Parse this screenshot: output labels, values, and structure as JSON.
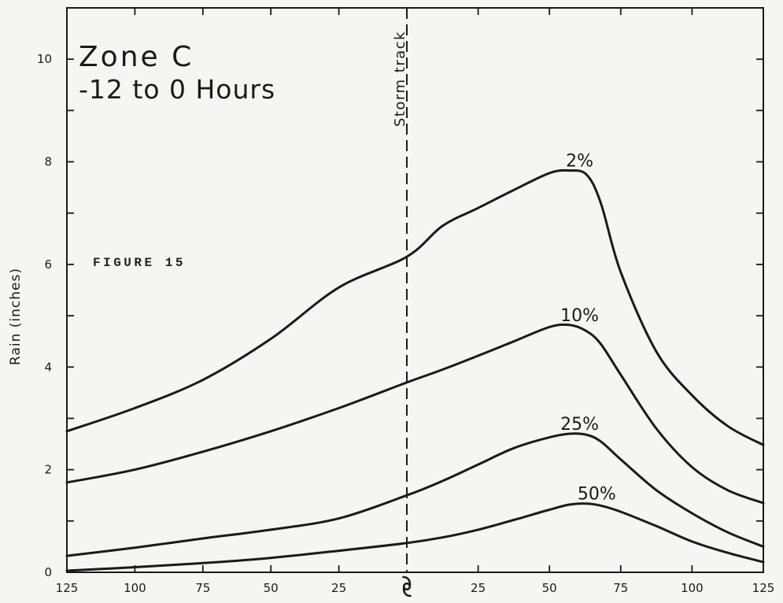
{
  "chart_data": {
    "type": "line",
    "title": "Zone C",
    "subtitle": "-12 to 0 Hours",
    "figure_label": "FIGURE 15",
    "ylabel": "Rain (inches)",
    "xlim": [
      -125,
      125
    ],
    "ylim": [
      0,
      11
    ],
    "x_ticks": [
      -125,
      -100,
      -75,
      -50,
      -25,
      0,
      25,
      50,
      75,
      100,
      125
    ],
    "x_tick_labels": [
      "125",
      "100",
      "75",
      "50",
      "25",
      "",
      "25",
      "50",
      "75",
      "100",
      "125"
    ],
    "y_ticks": [
      0,
      2,
      4,
      6,
      8,
      10
    ],
    "y_tick_labels": [
      "0",
      "2",
      "4",
      "6",
      "8",
      "10"
    ],
    "y_minor_ticks": [
      1,
      3,
      5,
      7,
      9
    ],
    "grid": false,
    "legend": false,
    "reference_line": {
      "x": 0,
      "label": "Storm track",
      "dashed": true
    },
    "center_tick_icon": "storm-symbol-icon",
    "line_color": "#1a1a1a",
    "x": [
      -125,
      -100,
      -75,
      -50,
      -25,
      0,
      12.5,
      25,
      37.5,
      50,
      57,
      63,
      68,
      75,
      87.5,
      100,
      112.5,
      125
    ],
    "series": [
      {
        "name": "2%",
        "values": [
          2.75,
          3.2,
          3.75,
          4.55,
          5.55,
          6.15,
          6.75,
          7.1,
          7.45,
          7.78,
          7.83,
          7.75,
          7.2,
          5.85,
          4.3,
          3.45,
          2.85,
          2.48
        ]
      },
      {
        "name": "10%",
        "values": [
          1.75,
          2.0,
          2.35,
          2.75,
          3.2,
          3.7,
          3.95,
          4.22,
          4.5,
          4.78,
          4.82,
          4.7,
          4.45,
          3.85,
          2.8,
          2.05,
          1.6,
          1.35
        ]
      },
      {
        "name": "25%",
        "values": [
          0.32,
          0.48,
          0.66,
          0.83,
          1.05,
          1.5,
          1.78,
          2.1,
          2.42,
          2.63,
          2.7,
          2.68,
          2.55,
          2.2,
          1.6,
          1.15,
          0.78,
          0.5
        ]
      },
      {
        "name": "50%",
        "values": [
          0.03,
          0.1,
          0.18,
          0.28,
          0.42,
          0.57,
          0.68,
          0.83,
          1.02,
          1.22,
          1.32,
          1.34,
          1.3,
          1.18,
          0.9,
          0.6,
          0.38,
          0.2
        ]
      }
    ]
  }
}
